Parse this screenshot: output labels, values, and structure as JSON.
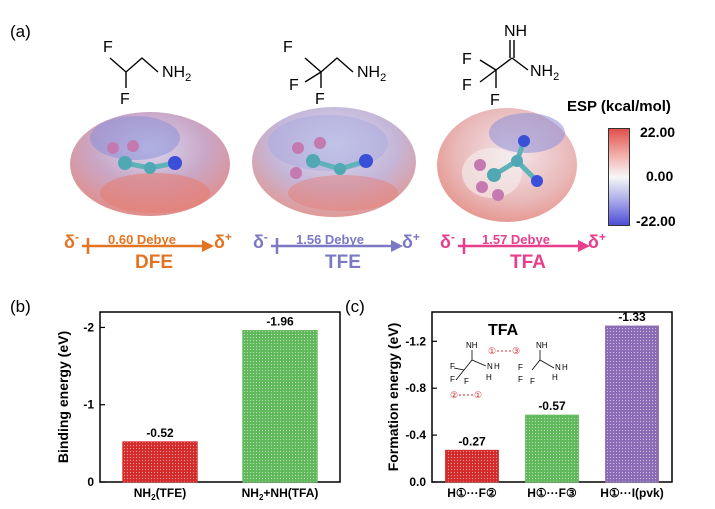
{
  "panel_a": {
    "label": "(a)",
    "molecules": [
      {
        "name": "DFE",
        "f1": "F",
        "f2": "F",
        "amine": "NH",
        "amine_sub": "2",
        "dipole": "0.60 Debye",
        "color": "#e37422"
      },
      {
        "name": "TFE",
        "f1": "F",
        "f2": "F",
        "f3": "F",
        "amine": "NH",
        "amine_sub": "2",
        "dipole": "1.56 Debye",
        "color": "#7b78c4"
      },
      {
        "name": "TFA",
        "f1": "F",
        "f2": "F",
        "f3": "F",
        "imine": "NH",
        "amine": "NH",
        "amine_sub": "2",
        "dipole": "1.57 Debye",
        "color": "#e83e8c"
      }
    ],
    "delta_minus": "δ",
    "delta_minus_sup": "-",
    "delta_plus": "δ",
    "delta_plus_sup": "+",
    "esp": {
      "title": "ESP (kcal/mol)",
      "max": "22.00",
      "mid": "0.00",
      "min": "-22.00"
    }
  },
  "panel_b": {
    "label": "(b)",
    "chart_data": {
      "type": "bar",
      "ylabel": "Binding energy (eV)",
      "categories": [
        "NH2(TFE)",
        "NH2+NH(TFA)"
      ],
      "category_labels": [
        {
          "pre": "NH",
          "sub": "2",
          "post": "(TFE)"
        },
        {
          "pre": "NH",
          "sub": "2",
          "post": "+NH(TFA)"
        }
      ],
      "values": [
        -0.52,
        -1.96
      ],
      "value_labels": [
        "-0.52",
        "-1.96"
      ],
      "ylim": [
        0,
        -2.2
      ],
      "yticks": [
        0,
        -1,
        -2
      ],
      "ytick_labels": [
        "0",
        "-1",
        "-2"
      ],
      "colors": [
        "#d42a2a",
        "#5fb85a"
      ],
      "inverted_axis": true
    }
  },
  "panel_c": {
    "label": "(c)",
    "chart_data": {
      "type": "bar",
      "ylabel": "Formation energy (eV)",
      "categories": [
        "H①···F②",
        "H①···F③",
        "H①···I(pvk)"
      ],
      "values": [
        -0.27,
        -0.57,
        -1.33
      ],
      "value_labels": [
        "-0.27",
        "-0.57",
        "-1.33"
      ],
      "ylim": [
        0,
        -1.45
      ],
      "yticks": [
        0,
        -0.4,
        -0.8,
        -1.2
      ],
      "ytick_labels": [
        "0.0",
        "-0.4",
        "-0.8",
        "-1.2"
      ],
      "colors": [
        "#d42a2a",
        "#5fb85a",
        "#8b6bb5"
      ],
      "inverted_axis": true
    },
    "inset": {
      "title": "TFA",
      "atoms": {
        "nh": "NH",
        "n": "N",
        "h": "H",
        "f": "F"
      },
      "markers": {
        "one": "①",
        "two": "②",
        "three": "③"
      }
    }
  }
}
